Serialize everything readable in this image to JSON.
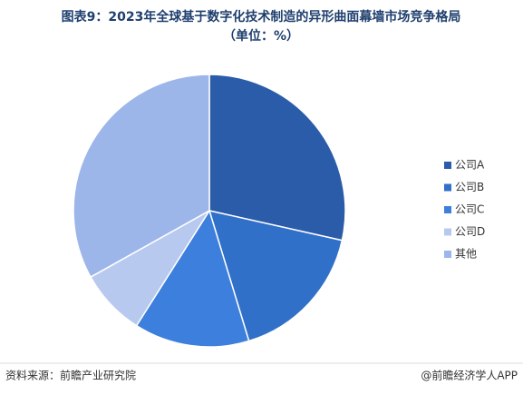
{
  "chart_data": {
    "type": "pie",
    "title": "图表9：2023年全球基于数字化技术制造的异形曲面幕墙市场竞争格局",
    "subtitle": "（单位：%）",
    "categories": [
      "公司A",
      "公司B",
      "公司C",
      "公司D",
      "其他"
    ],
    "values": [
      28.5,
      16.8,
      13.7,
      7.9,
      33.1
    ],
    "colors": [
      "#2a5caa",
      "#3170c8",
      "#3d7fdc",
      "#b8c9f0",
      "#9db6ea"
    ],
    "source": "资料来源：前瞻产业研究院",
    "credit": "@前瞻经济学人APP"
  }
}
